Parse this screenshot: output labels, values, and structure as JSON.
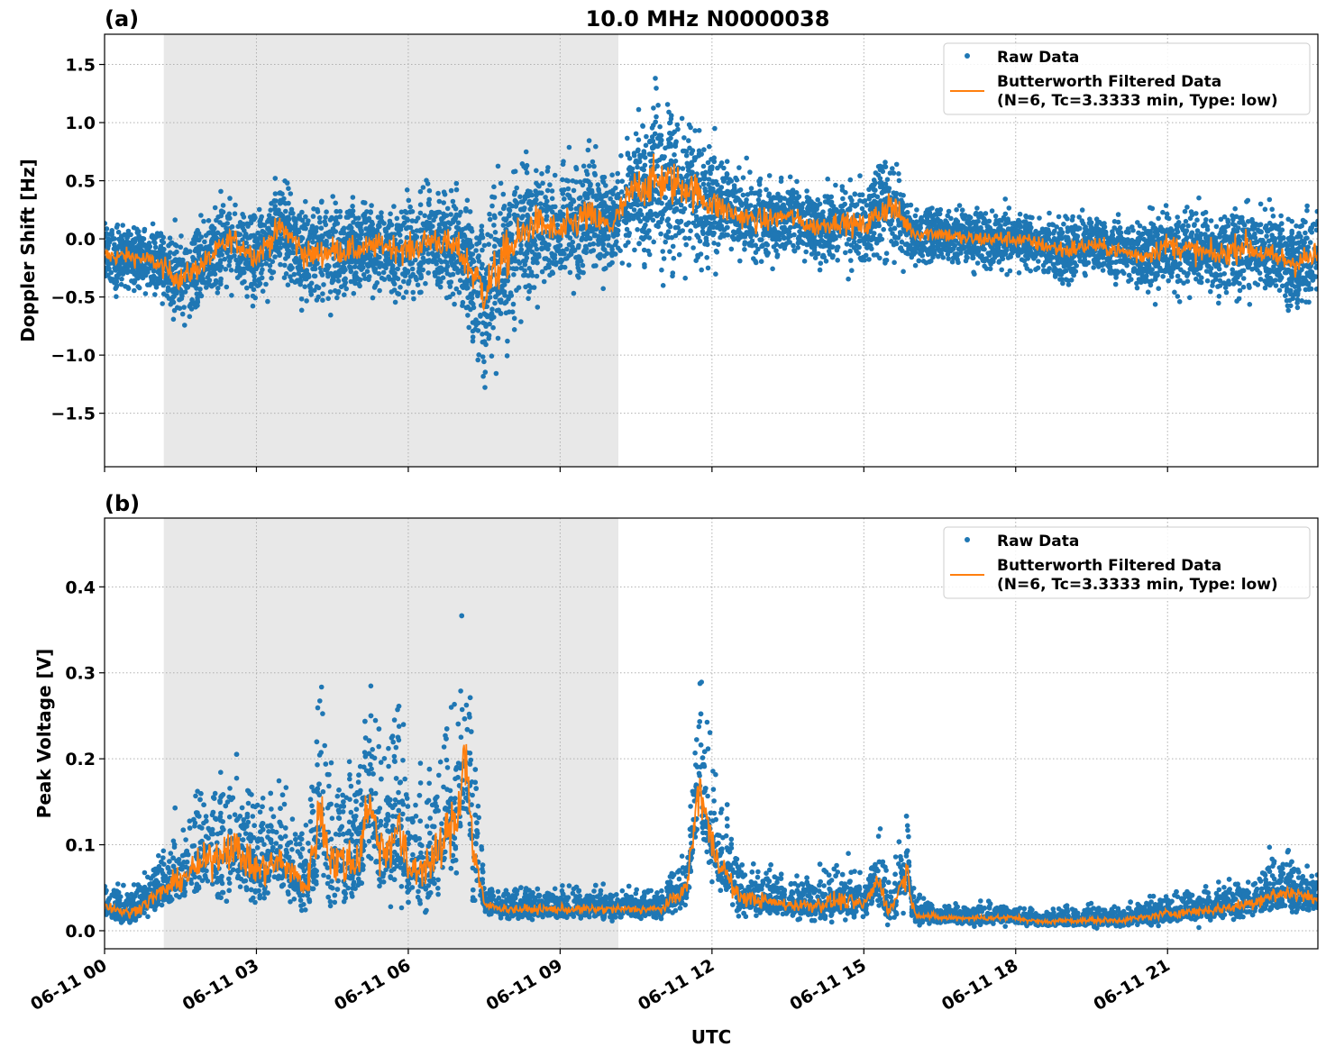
{
  "chart_data": {
    "title": "10.0 MHz N0000038",
    "xlabel": "UTC",
    "x_units": "hours since 06-11 00 UTC",
    "xlim": [
      0,
      23.97
    ],
    "xticks": [
      0,
      3,
      6,
      9,
      12,
      15,
      18,
      21
    ],
    "xtick_labels": [
      "06-11 00",
      "06-11 03",
      "06-11 06",
      "06-11 09",
      "06-11 12",
      "06-11 15",
      "06-11 18",
      "06-11 21"
    ],
    "shaded_interval": [
      1.17,
      10.15
    ],
    "grid": true,
    "colors": {
      "raw": "#1f77b4",
      "filtered": "#ff7f0e",
      "shade": "#e8e8e8",
      "grid": "#b0b0b0"
    },
    "legend": {
      "placement": "top-right",
      "raw_label": "Raw Data",
      "filtered_label_line1": "Butterworth Filtered Data",
      "filtered_label_line2": "(N=6, Tc=3.3333 min, Type: low)"
    },
    "panels": [
      {
        "label": "(a)",
        "type": "scatter+line",
        "ylabel": "Doppler Shift [Hz]",
        "ylim": [
          -1.96,
          1.76
        ],
        "yticks": [
          -1.5,
          -1.0,
          -0.5,
          0.0,
          0.5,
          1.0,
          1.5
        ],
        "ytick_labels": [
          "−1.5",
          "−1.0",
          "−0.5",
          "0.0",
          "0.5",
          "1.0",
          "1.5"
        ],
        "x": [
          0,
          0.5,
          1,
          1.5,
          2,
          2.5,
          3,
          3.5,
          4,
          4.5,
          5,
          5.5,
          6,
          6.5,
          7,
          7.5,
          8,
          8.5,
          9,
          9.5,
          10,
          10.5,
          11,
          11.5,
          12,
          12.5,
          13,
          13.5,
          14,
          14.5,
          15,
          15.5,
          16,
          16.5,
          17,
          17.5,
          18,
          18.5,
          19,
          19.5,
          20,
          20.5,
          21,
          21.5,
          22,
          22.5,
          23,
          23.5,
          23.97
        ],
        "filtered": [
          -0.15,
          -0.15,
          -0.2,
          -0.35,
          -0.2,
          0.0,
          -0.15,
          0.1,
          -0.15,
          -0.1,
          -0.1,
          -0.05,
          -0.1,
          0.0,
          -0.1,
          -0.45,
          -0.1,
          0.15,
          0.05,
          0.2,
          0.1,
          0.45,
          0.5,
          0.45,
          0.3,
          0.2,
          0.15,
          0.2,
          0.1,
          0.15,
          0.1,
          0.3,
          0.05,
          0.05,
          0.0,
          0.0,
          0.0,
          -0.05,
          -0.1,
          -0.05,
          -0.1,
          -0.15,
          -0.05,
          -0.1,
          -0.15,
          -0.05,
          -0.15,
          -0.2,
          -0.15
        ],
        "raw_spread": [
          0.25,
          0.2,
          0.25,
          0.3,
          0.3,
          0.3,
          0.3,
          0.35,
          0.35,
          0.35,
          0.3,
          0.3,
          0.35,
          0.35,
          0.4,
          0.6,
          0.6,
          0.4,
          0.4,
          0.45,
          0.3,
          0.5,
          0.6,
          0.5,
          0.4,
          0.3,
          0.3,
          0.25,
          0.25,
          0.25,
          0.3,
          0.4,
          0.2,
          0.2,
          0.2,
          0.2,
          0.2,
          0.2,
          0.25,
          0.2,
          0.2,
          0.25,
          0.3,
          0.3,
          0.3,
          0.35,
          0.3,
          0.35,
          0.35
        ]
      },
      {
        "label": "(b)",
        "type": "scatter+line",
        "ylabel": "Peak Voltage [V]",
        "ylim": [
          -0.021,
          0.48
        ],
        "yticks": [
          0.0,
          0.1,
          0.2,
          0.3,
          0.4
        ],
        "ytick_labels": [
          "0.0",
          "0.1",
          "0.2",
          "0.3",
          "0.4"
        ],
        "x": [
          0,
          0.5,
          1,
          1.5,
          2,
          2.5,
          3,
          3.5,
          4,
          4.25,
          4.5,
          5,
          5.2,
          5.5,
          5.8,
          6,
          6.5,
          7,
          7.1,
          7.3,
          7.5,
          8,
          9,
          10,
          11,
          11.5,
          11.75,
          12,
          12.5,
          13,
          13.5,
          14,
          14.5,
          15,
          15.3,
          15.5,
          15.85,
          16,
          16.5,
          17,
          18,
          18.5,
          19,
          20,
          20.5,
          21,
          22,
          22.5,
          23,
          23.5,
          23.97
        ],
        "filtered": [
          0.03,
          0.02,
          0.04,
          0.06,
          0.08,
          0.1,
          0.07,
          0.08,
          0.05,
          0.14,
          0.08,
          0.08,
          0.15,
          0.09,
          0.12,
          0.07,
          0.08,
          0.14,
          0.22,
          0.09,
          0.03,
          0.025,
          0.025,
          0.025,
          0.025,
          0.05,
          0.17,
          0.1,
          0.04,
          0.035,
          0.03,
          0.03,
          0.035,
          0.03,
          0.06,
          0.02,
          0.07,
          0.02,
          0.015,
          0.015,
          0.015,
          0.01,
          0.012,
          0.012,
          0.015,
          0.02,
          0.025,
          0.03,
          0.04,
          0.045,
          0.035
        ],
        "raw_spread": [
          0.02,
          0.015,
          0.03,
          0.04,
          0.06,
          0.07,
          0.06,
          0.06,
          0.04,
          0.12,
          0.08,
          0.08,
          0.1,
          0.09,
          0.1,
          0.07,
          0.07,
          0.1,
          0.12,
          0.1,
          0.015,
          0.015,
          0.015,
          0.015,
          0.015,
          0.03,
          0.09,
          0.06,
          0.03,
          0.025,
          0.02,
          0.025,
          0.03,
          0.02,
          0.04,
          0.02,
          0.05,
          0.015,
          0.01,
          0.01,
          0.01,
          0.008,
          0.01,
          0.01,
          0.012,
          0.015,
          0.018,
          0.02,
          0.03,
          0.03,
          0.02
        ]
      }
    ]
  }
}
